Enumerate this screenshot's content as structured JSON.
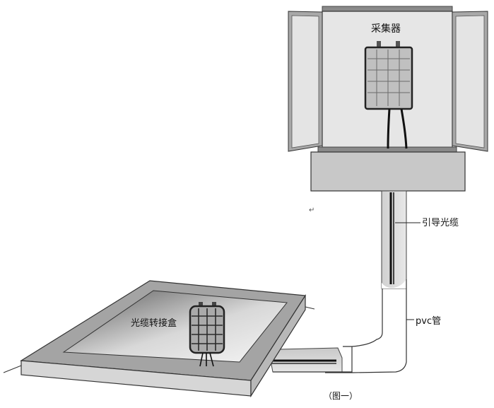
{
  "labels": {
    "collector": "采集器",
    "lead_cable": "引导光缆",
    "pvc_pipe": "pvc管",
    "junction_box": "光缆转接盒",
    "figure_caption": "（图一）",
    "return_mark": "↵"
  }
}
